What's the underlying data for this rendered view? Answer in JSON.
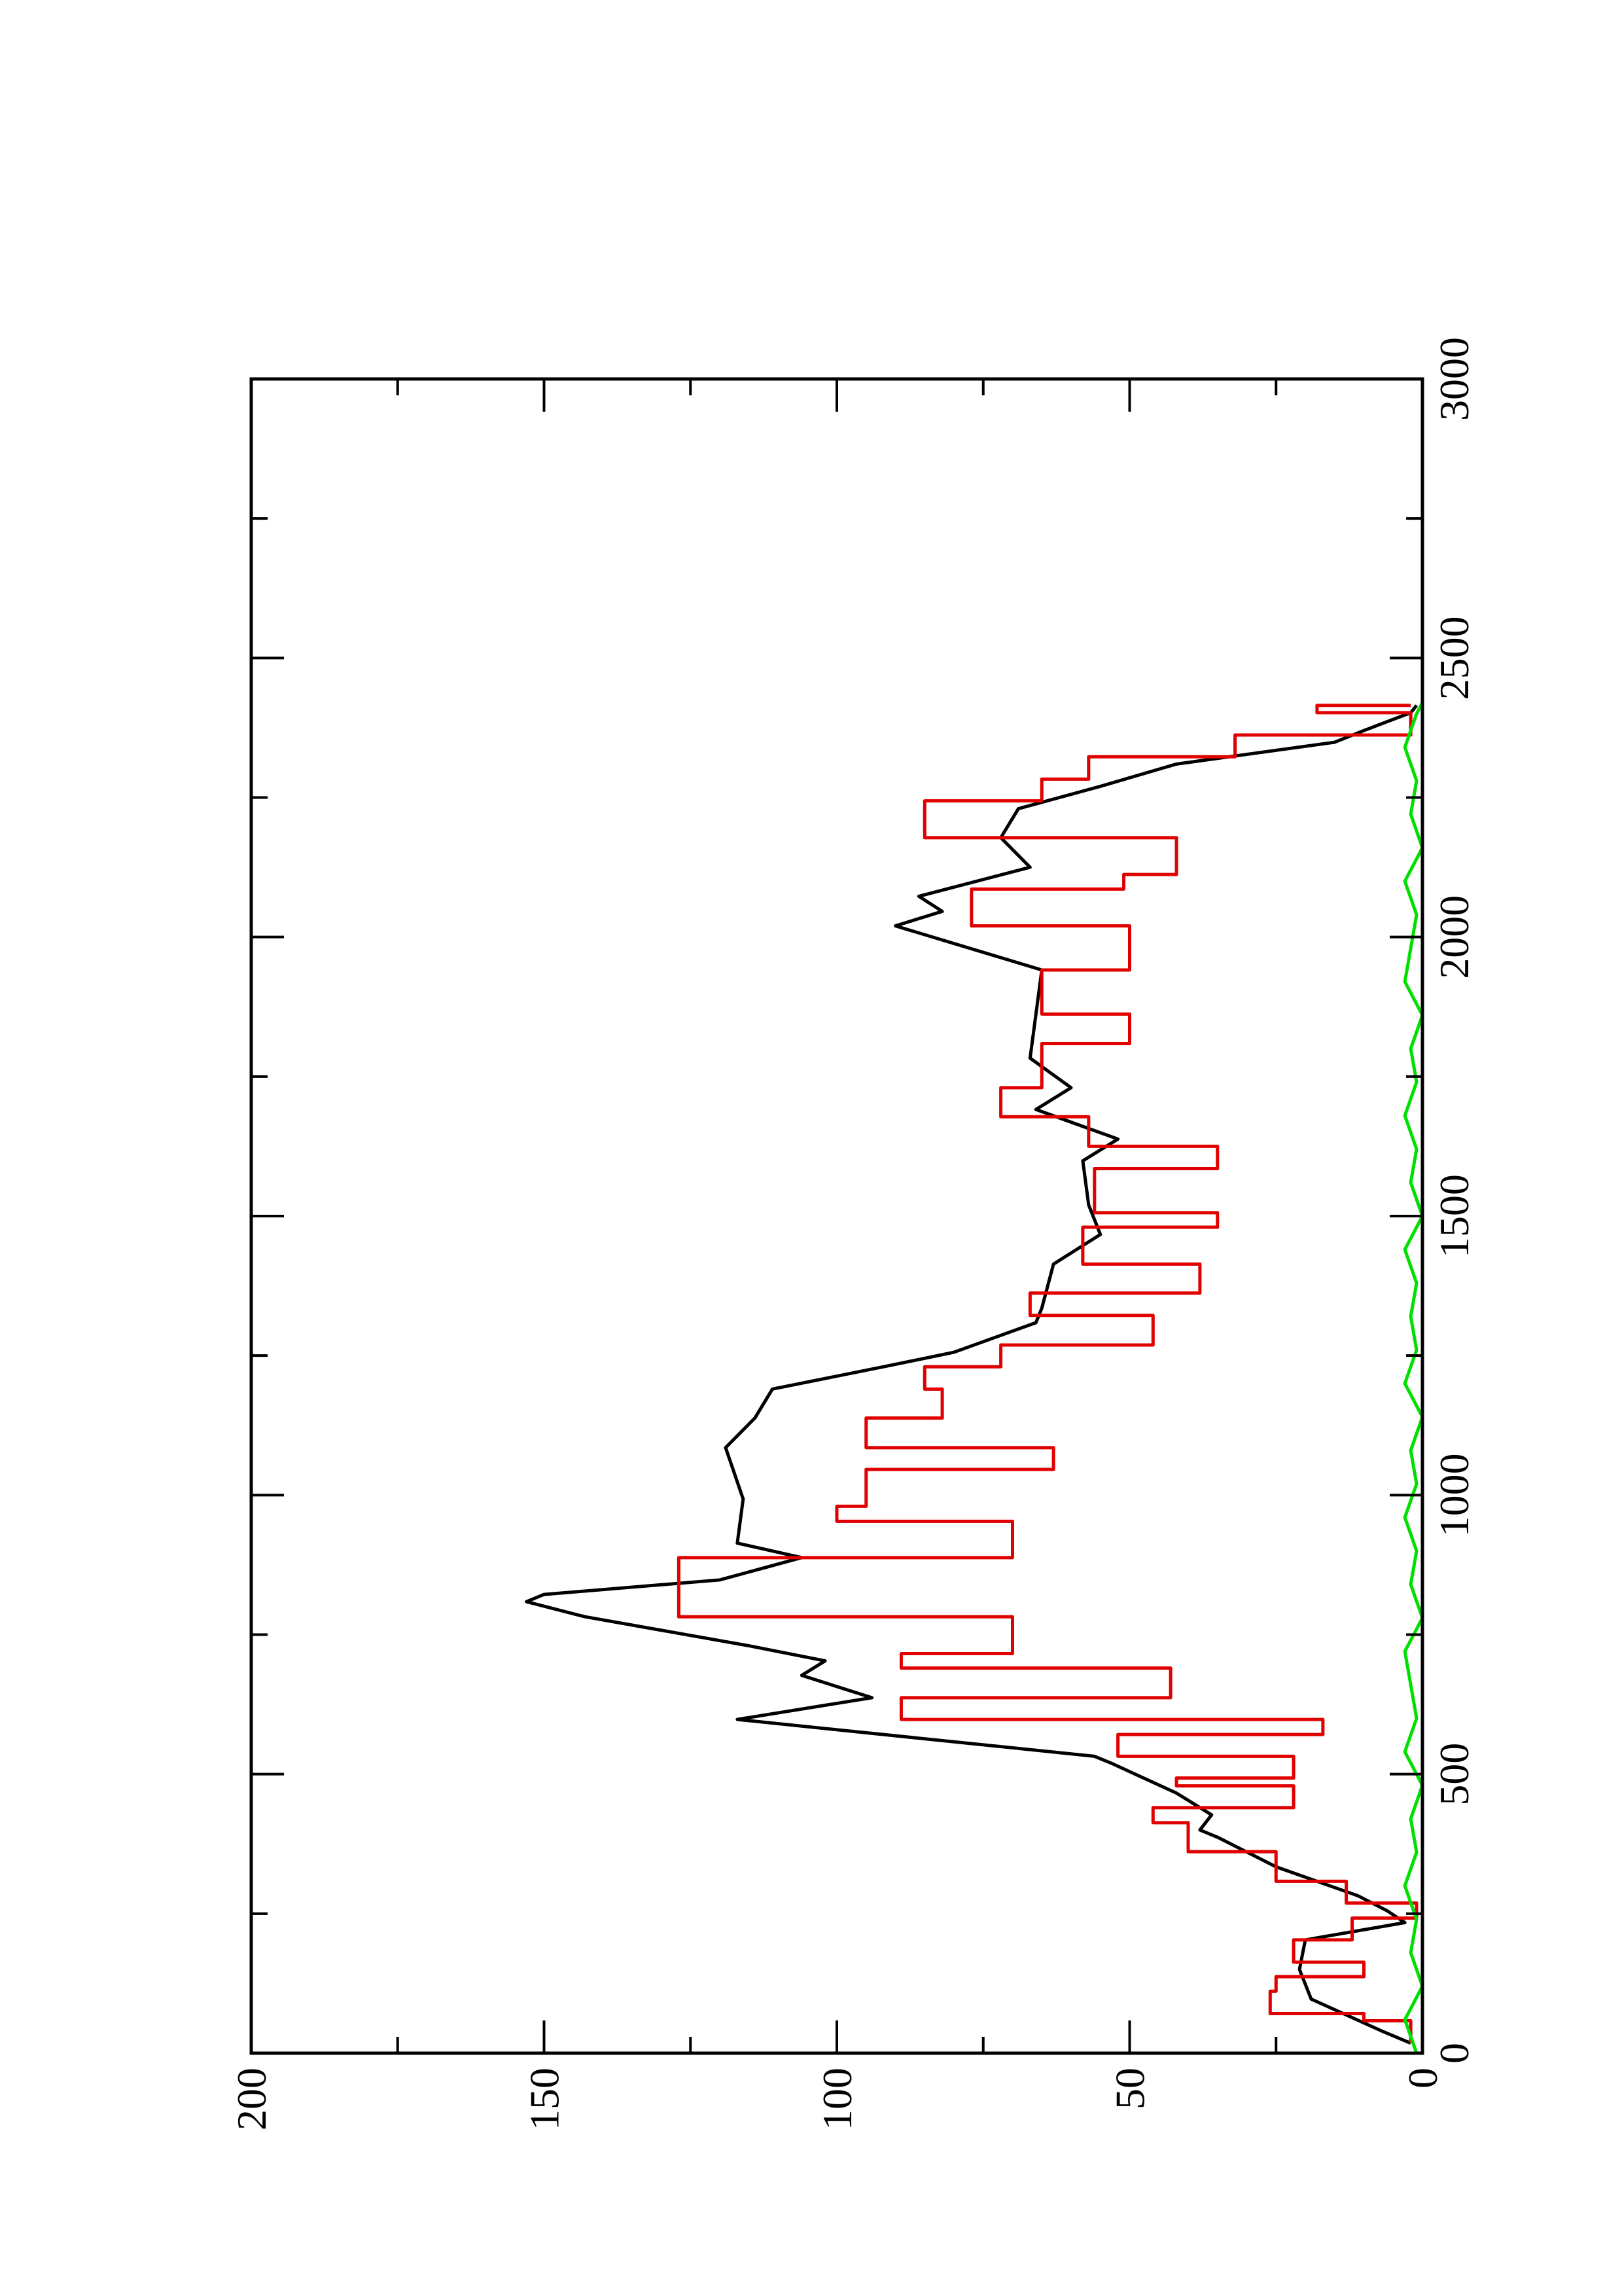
{
  "chart_data": {
    "type": "line",
    "xlim": [
      0,
      3000
    ],
    "ylim": [
      0,
      200
    ],
    "xticks": [
      0,
      500,
      1000,
      1500,
      2000,
      2500,
      3000
    ],
    "xminor_ticks": [
      250,
      750,
      1250,
      1750,
      2250,
      2750
    ],
    "yticks": [
      0,
      50,
      100,
      150,
      200
    ],
    "yminor_ticks": [
      25,
      75,
      125,
      175
    ],
    "rotated": true,
    "series": [
      {
        "color": "#000000",
        "step": false,
        "x": [
          18,
          40,
          97,
          150,
          203,
          234,
          255,
          282,
          334,
          387,
          400,
          427,
          466,
          519,
          532,
          598,
          637,
          677,
          703,
          730,
          782,
          809,
          822,
          848,
          888,
          914,
          993,
          1085,
          1138,
          1190,
          1230,
          1256,
          1309,
          1335,
          1414,
          1467,
          1520,
          1599,
          1638,
          1691,
          1730,
          1783,
          1862,
          1941,
          2020,
          2046,
          2073,
          2125,
          2178,
          2230,
          2270,
          2310,
          2349,
          2370,
          2402,
          2415
        ],
        "values": [
          2,
          7,
          19,
          21,
          20,
          3,
          6,
          11,
          25,
          35,
          38,
          36,
          42,
          53,
          56,
          117,
          94,
          106,
          102,
          115,
          143,
          153,
          150,
          120,
          106,
          117,
          116,
          119,
          114,
          111,
          92,
          80,
          66,
          65,
          63,
          55,
          57,
          58,
          52,
          66,
          60,
          67,
          66,
          65,
          90,
          82,
          86,
          67,
          72,
          69,
          55,
          42,
          15,
          10,
          2,
          1
        ]
      },
      {
        "color": "#e00000",
        "step": true,
        "x": [
          18,
          58,
          71,
          111,
          137,
          163,
          203,
          242,
          269,
          308,
          361,
          413,
          440,
          479,
          493,
          532,
          571,
          598,
          637,
          690,
          716,
          782,
          809,
          888,
          953,
          980,
          1046,
          1085,
          1138,
          1190,
          1230,
          1269,
          1322,
          1362,
          1414,
          1480,
          1506,
          1585,
          1625,
          1678,
          1730,
          1809,
          1862,
          1941,
          2020,
          2086,
          2112,
          2178,
          2244,
          2283,
          2323,
          2362,
          2402,
          2415
        ],
        "values": [
          2,
          10,
          26,
          25,
          10,
          22,
          12,
          1,
          13,
          25,
          40,
          46,
          22,
          42,
          22,
          52,
          17,
          89,
          43,
          89,
          70,
          127,
          127,
          70,
          100,
          95,
          63,
          95,
          82,
          85,
          72,
          46,
          67,
          38,
          58,
          35,
          56,
          35,
          57,
          72,
          65,
          50,
          65,
          50,
          77,
          51,
          42,
          85,
          65,
          57,
          32,
          2,
          18,
          2
        ]
      },
      {
        "color": "#00e000",
        "step": false,
        "x": [
          0,
          60,
          120,
          180,
          240,
          300,
          360,
          420,
          480,
          540,
          600,
          660,
          720,
          780,
          840,
          900,
          960,
          1020,
          1080,
          1140,
          1200,
          1260,
          1320,
          1380,
          1440,
          1500,
          1560,
          1620,
          1680,
          1740,
          1800,
          1860,
          1920,
          1980,
          2040,
          2100,
          2160,
          2220,
          2280,
          2340,
          2400,
          2420
        ],
        "values": [
          1,
          3,
          0,
          2,
          1,
          3,
          1,
          2,
          0,
          3,
          1,
          2,
          3,
          0,
          2,
          1,
          3,
          1,
          2,
          0,
          3,
          1,
          2,
          1,
          3,
          0,
          2,
          1,
          3,
          1,
          2,
          0,
          3,
          2,
          1,
          3,
          0,
          2,
          1,
          3,
          1,
          0
        ]
      }
    ]
  }
}
